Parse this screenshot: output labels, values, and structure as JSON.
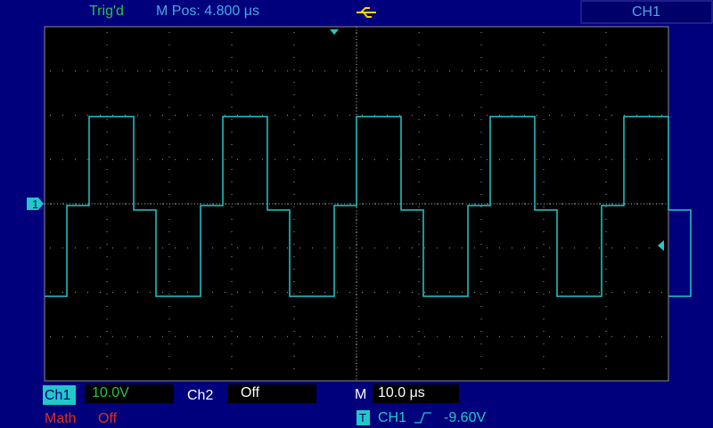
{
  "status": {
    "trigger": "Trig'd",
    "position": "M Pos: 4.800 μs"
  },
  "channel_box": "CH1",
  "ch1_marker": "1",
  "bottom": {
    "ch1_label": "Ch1",
    "ch1_scale": "10.0V",
    "ch2_label": "Ch2",
    "ch2_state": "Off",
    "timebase_label": "M",
    "timebase": "10.0 μs",
    "math_label": "Math",
    "math_state": "Off",
    "trigger_icon": "T",
    "trigger_source": "CH1",
    "trigger_level": "-9.60V"
  }
}
